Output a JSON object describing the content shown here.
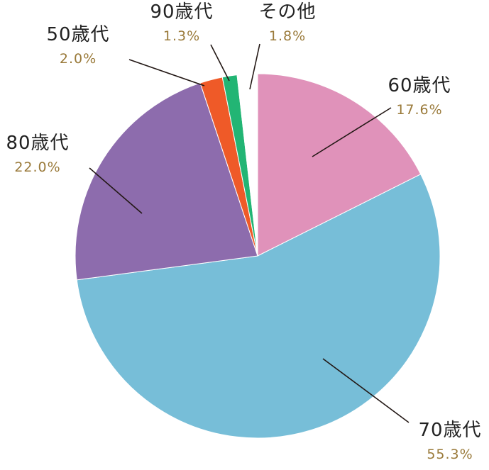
{
  "chart_data": {
    "type": "pie",
    "title": "",
    "start_angle_deg": 0,
    "direction": "clockwise",
    "slices": [
      {
        "label": "60歳代",
        "value": 17.6,
        "value_label": "17.6%",
        "color": "#e092ba"
      },
      {
        "label": "70歳代",
        "value": 55.3,
        "value_label": "55.3%",
        "color": "#77bed8"
      },
      {
        "label": "80歳代",
        "value": 22.0,
        "value_label": "22.0%",
        "color": "#8d6cad"
      },
      {
        "label": "50歳代",
        "value": 2.0,
        "value_label": "2.0%",
        "color": "#ef5a28"
      },
      {
        "label": "90歳代",
        "value": 1.3,
        "value_label": "1.3%",
        "color": "#22b574"
      },
      {
        "label": "その他",
        "value": 1.8,
        "value_label": "1.8%",
        "color": "#ffffff"
      }
    ],
    "percent_text_color": "#9a7a3a",
    "leader_line_color": "#231815"
  }
}
